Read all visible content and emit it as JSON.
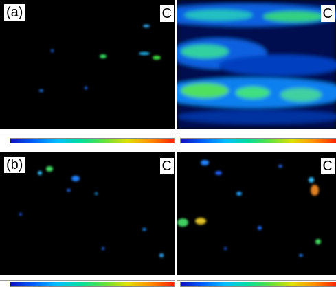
{
  "panels": [
    {
      "label": "(a)",
      "element": "C"
    },
    {
      "element": "C"
    },
    {
      "label": "(b)",
      "element": "C"
    },
    {
      "element": "C"
    }
  ]
}
